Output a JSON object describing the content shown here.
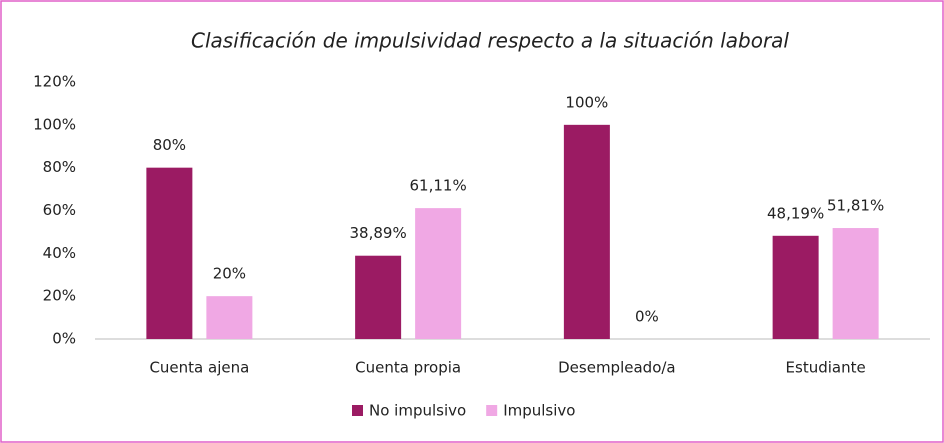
{
  "chart_data": {
    "type": "bar",
    "title": "Clasificación de impulsividad respecto a la situación laboral",
    "categories": [
      "Cuenta ajena",
      "Cuenta propia",
      "Desempleado/a",
      "Estudiante"
    ],
    "series": [
      {
        "name": "No impulsivo",
        "color": "#9b1b63",
        "values": [
          80,
          38.89,
          100,
          48.19
        ],
        "value_labels": [
          "80%",
          "38,89%",
          "100%",
          "48,19%"
        ]
      },
      {
        "name": "Impulsivo",
        "color": "#f0a8e4",
        "values": [
          20,
          61.11,
          0,
          51.81
        ],
        "value_labels": [
          "20%",
          "61,11%",
          "0%",
          "51,81%"
        ]
      }
    ],
    "ylim": [
      0,
      120
    ],
    "yticks": [
      {
        "value": 0,
        "label": "0%"
      },
      {
        "value": 20,
        "label": "20%"
      },
      {
        "value": 40,
        "label": "40%"
      },
      {
        "value": 60,
        "label": "60%"
      },
      {
        "value": 80,
        "label": "80%"
      },
      {
        "value": 100,
        "label": "100%"
      },
      {
        "value": 120,
        "label": "120%"
      }
    ],
    "grid": false,
    "legend": "bottom"
  }
}
